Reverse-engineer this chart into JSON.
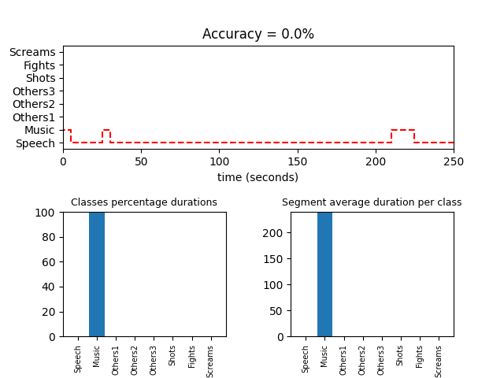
{
  "title": "Accuracy = 0.0%",
  "ytick_labels": [
    "Speech",
    "Music",
    "Others1",
    "Others2",
    "Others3",
    "Shots",
    "Fights",
    "Screams"
  ],
  "ytick_values": [
    1,
    2,
    3,
    4,
    5,
    6,
    7,
    8
  ],
  "xlabel": "time (seconds)",
  "xlim": [
    0,
    250
  ],
  "ylim": [
    0.5,
    8.5
  ],
  "line_color": "#ff0000",
  "line_style": "--",
  "line_width": 1.5,
  "step_x": [
    0,
    0,
    5,
    5,
    25,
    25,
    30,
    30,
    210,
    210,
    225,
    225,
    250
  ],
  "step_y": [
    1,
    2,
    2,
    1,
    1,
    2,
    2,
    1,
    1,
    2,
    2,
    1,
    1
  ],
  "bar_classes": [
    "Speech",
    "Music",
    "Others1",
    "Others2",
    "Others3",
    "Shots",
    "Fights",
    "Screams"
  ],
  "bar_pct_values": [
    0,
    100,
    0,
    0,
    0,
    0,
    0,
    0
  ],
  "bar_avg_values": [
    0,
    240,
    0,
    0,
    0,
    0,
    0,
    0
  ],
  "bar_color": "#2077b4",
  "bar_chart1_title": "Classes percentage durations",
  "bar_chart2_title": "Segment average duration per class",
  "bar_chart1_ylim": [
    0,
    100
  ],
  "bar_chart2_ylim": [
    0,
    240
  ],
  "bar_chart1_yticks": [
    0,
    20,
    40,
    60,
    80,
    100
  ],
  "bar_chart2_yticks": [
    0,
    50,
    100,
    150,
    200
  ],
  "top_height_ratio": 1.0,
  "bottom_height_ratio": 1.2,
  "hspace": 0.55,
  "wspace": 0.4
}
